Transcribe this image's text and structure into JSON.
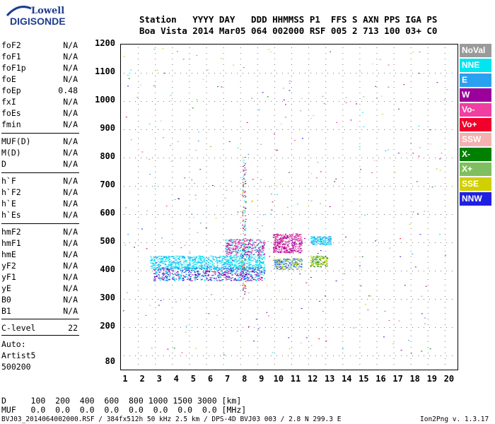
{
  "logo": {
    "line1": "Lowell",
    "line2": "DIGISONDE",
    "color": "#1f3c8f"
  },
  "header": {
    "labels": "Station   YYYY DAY   DDD HHMMSS P1  FFS S AXN PPS IGA PS",
    "values": "Boa Vista 2014 Mar05 064 002000 RSF 005 2 713 100 03+ C0"
  },
  "params": {
    "group1": [
      {
        "name": "foF2",
        "value": "N/A"
      },
      {
        "name": "foF1",
        "value": "N/A"
      },
      {
        "name": "foF1p",
        "value": "N/A"
      },
      {
        "name": "foE",
        "value": "N/A"
      },
      {
        "name": "foEp",
        "value": "0.48"
      },
      {
        "name": "fxI",
        "value": "N/A"
      },
      {
        "name": "foEs",
        "value": "N/A"
      },
      {
        "name": "fmin",
        "value": "N/A"
      }
    ],
    "group2": [
      {
        "name": "MUF(D)",
        "value": "N/A"
      },
      {
        "name": "M(D)",
        "value": "N/A"
      },
      {
        "name": "D",
        "value": "N/A"
      }
    ],
    "group3": [
      {
        "name": "h`F",
        "value": "N/A"
      },
      {
        "name": "h`F2",
        "value": "N/A"
      },
      {
        "name": "h`E",
        "value": "N/A"
      },
      {
        "name": "h`Es",
        "value": "N/A"
      }
    ],
    "group4": [
      {
        "name": "hmF2",
        "value": "N/A"
      },
      {
        "name": "hmF1",
        "value": "N/A"
      },
      {
        "name": "hmE",
        "value": "N/A"
      },
      {
        "name": "yF2",
        "value": "N/A"
      },
      {
        "name": "yF1",
        "value": "N/A"
      },
      {
        "name": "yE",
        "value": "N/A"
      },
      {
        "name": "B0",
        "value": "N/A"
      },
      {
        "name": "B1",
        "value": "N/A"
      }
    ],
    "clevel": {
      "name": "C-level",
      "value": "22"
    },
    "auto": [
      "Auto:",
      "Artist5",
      "500200"
    ]
  },
  "plot": {
    "y_ticks": [
      "1200",
      "1100",
      "1000",
      "900",
      "800",
      "700",
      "600",
      "500",
      "400",
      "300",
      "200",
      "80"
    ],
    "x_ticks": [
      "1",
      "2",
      "3",
      "4",
      "5",
      "6",
      "7",
      "8",
      "9",
      "10",
      "11",
      "12",
      "13",
      "14",
      "15",
      "16",
      "17",
      "18",
      "19",
      "20"
    ]
  },
  "legend": [
    {
      "label": "NoVal",
      "color": "#9a9a9a"
    },
    {
      "label": "NNE",
      "color": "#00e5f0"
    },
    {
      "label": "E",
      "color": "#2aa0f0"
    },
    {
      "label": "W",
      "color": "#9b009b"
    },
    {
      "label": "Vo-",
      "color": "#f03fa0"
    },
    {
      "label": "Vo+",
      "color": "#f0002a"
    },
    {
      "label": "SSW",
      "color": "#f5b0b0"
    },
    {
      "label": "X-",
      "color": "#008000"
    },
    {
      "label": "X+",
      "color": "#7fbf5f"
    },
    {
      "label": "SSE",
      "color": "#d0d000"
    },
    {
      "label": "NNW",
      "color": "#2020e0"
    }
  ],
  "footer": {
    "d_row": "D     100  200  400  600  800 1000 1500 3000 [km]",
    "muf_row": "MUF   0.0  0.0  0.0  0.0  0.0  0.0  0.0  0.0 [MHz]",
    "file_info": "BVJ03_2014064002000.RSF / 384fx512h 50 kHz 2.5 km / DPS-4D BVJ03 003 / 2.8 N 299.3 E",
    "version": "Ion2Png v. 1.3.17"
  }
}
